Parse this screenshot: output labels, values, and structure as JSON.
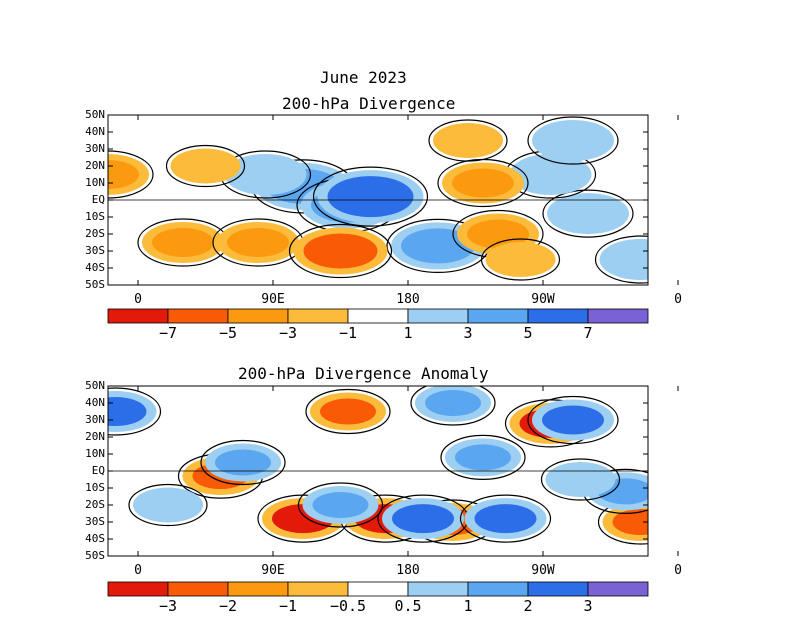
{
  "chart_data": [
    {
      "type": "heatmap",
      "title": "June 2023",
      "subtitle": "200-hPa Divergence",
      "y_ticks": [
        "50N",
        "40N",
        "30N",
        "20N",
        "10N",
        "EQ",
        "10S",
        "20S",
        "30S",
        "40S",
        "50S"
      ],
      "x_ticks": [
        "0",
        "90E",
        "180",
        "90W",
        "0"
      ],
      "colorbar": {
        "levels": [
          -7,
          -5,
          -3,
          -1,
          1,
          3,
          5,
          7
        ],
        "labels": [
          "−7",
          "−5",
          "−3",
          "−1",
          "1",
          "3",
          "5",
          "7"
        ],
        "colors": [
          "#e31a0a",
          "#f85a05",
          "#fb9a0f",
          "#fdbb3b",
          "#ffffff",
          "#9ccff2",
          "#5aa6f0",
          "#2c6ee8",
          "#7a62d6"
        ]
      },
      "regions": [
        {
          "lon": 110,
          "lat": 8,
          "value": 5
        },
        {
          "lon": 140,
          "lat": -3,
          "value": 5
        },
        {
          "lon": 155,
          "lat": 2,
          "value": 7
        },
        {
          "lon": 85,
          "lat": 15,
          "value": 3
        },
        {
          "lon": -160,
          "lat": -27,
          "value": 5
        },
        {
          "lon": -60,
          "lat": -8,
          "value": 3
        },
        {
          "lon": -85,
          "lat": 15,
          "value": 3
        },
        {
          "lon": -70,
          "lat": 35,
          "value": 3
        },
        {
          "lon": -25,
          "lat": -35,
          "value": 3
        },
        {
          "lon": 30,
          "lat": -25,
          "value": -3
        },
        {
          "lon": 80,
          "lat": -25,
          "value": -3
        },
        {
          "lon": 135,
          "lat": -30,
          "value": -5
        },
        {
          "lon": -130,
          "lat": 10,
          "value": -3
        },
        {
          "lon": -120,
          "lat": -20,
          "value": -3
        },
        {
          "lon": -20,
          "lat": 15,
          "value": -3
        },
        {
          "lon": 45,
          "lat": 20,
          "value": -1
        },
        {
          "lon": -140,
          "lat": 35,
          "value": -1
        },
        {
          "lon": -105,
          "lat": -35,
          "value": -1
        }
      ]
    },
    {
      "type": "heatmap",
      "title": "200-hPa Divergence Anomaly",
      "y_ticks": [
        "50N",
        "40N",
        "30N",
        "20N",
        "10N",
        "EQ",
        "10S",
        "20S",
        "30S",
        "40S",
        "50S"
      ],
      "x_ticks": [
        "0",
        "90E",
        "180",
        "90W",
        "0"
      ],
      "colorbar": {
        "levels": [
          -3,
          -2,
          -1,
          -0.5,
          0.5,
          1,
          2,
          3
        ],
        "labels": [
          "−3",
          "−2",
          "−1",
          "−0.5",
          "0.5",
          "1",
          "2",
          "3"
        ],
        "colors": [
          "#e31a0a",
          "#f85a05",
          "#fb9a0f",
          "#fdbb3b",
          "#ffffff",
          "#9ccff2",
          "#5aa6f0",
          "#2c6ee8",
          "#7a62d6"
        ]
      },
      "regions": [
        {
          "lon": 110,
          "lat": -28,
          "value": -3
        },
        {
          "lon": 165,
          "lat": -28,
          "value": -3
        },
        {
          "lon": -85,
          "lat": 28,
          "value": -3
        },
        {
          "lon": 55,
          "lat": -3,
          "value": -2
        },
        {
          "lon": -150,
          "lat": -30,
          "value": -2
        },
        {
          "lon": -25,
          "lat": -30,
          "value": -2
        },
        {
          "lon": 140,
          "lat": 35,
          "value": -2
        },
        {
          "lon": -170,
          "lat": -28,
          "value": 3
        },
        {
          "lon": -115,
          "lat": -28,
          "value": 3
        },
        {
          "lon": -70,
          "lat": 30,
          "value": 3
        },
        {
          "lon": -15,
          "lat": 35,
          "value": 3
        },
        {
          "lon": -130,
          "lat": 8,
          "value": 2
        },
        {
          "lon": -150,
          "lat": 40,
          "value": 2
        },
        {
          "lon": 70,
          "lat": 5,
          "value": 2
        },
        {
          "lon": 135,
          "lat": -20,
          "value": 2
        },
        {
          "lon": -35,
          "lat": -12,
          "value": 2
        },
        {
          "lon": 20,
          "lat": -20,
          "value": 1
        },
        {
          "lon": -65,
          "lat": -5,
          "value": 1
        }
      ]
    }
  ]
}
